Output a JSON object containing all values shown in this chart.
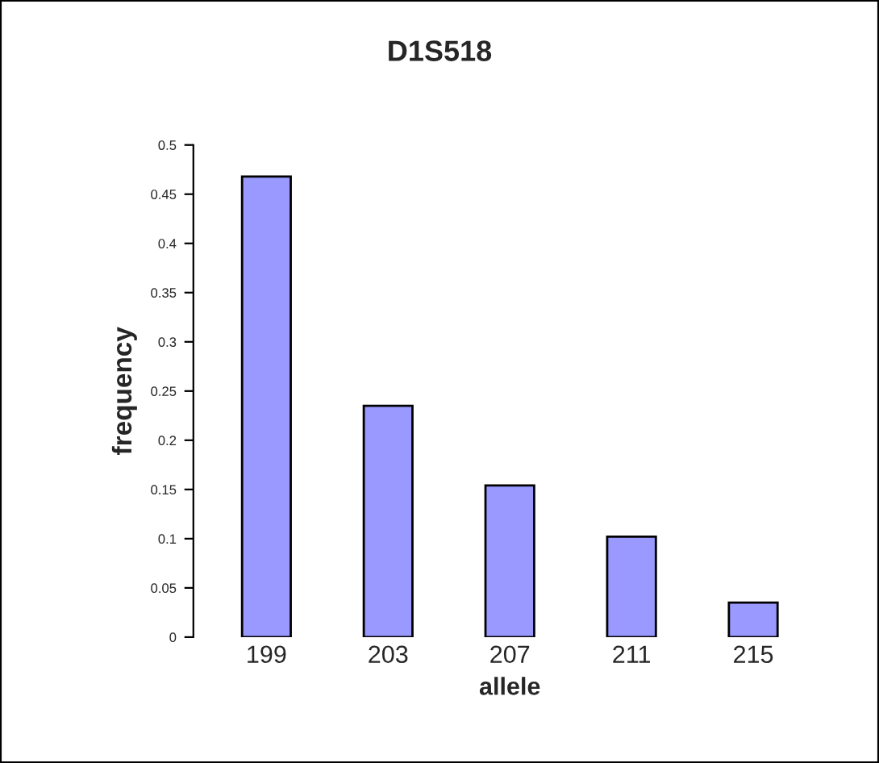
{
  "chart_data": {
    "type": "bar",
    "title": "D1S518",
    "xlabel": "allele",
    "ylabel": "frequency",
    "categories": [
      "199",
      "203",
      "207",
      "211",
      "215"
    ],
    "values": [
      0.468,
      0.235,
      0.154,
      0.102,
      0.035
    ],
    "color": "#9999ff",
    "ylim": [
      0,
      0.5
    ],
    "yticks": [
      0,
      0.05,
      0.1,
      0.15,
      0.2,
      0.25,
      0.3,
      0.35,
      0.4,
      0.45,
      0.5
    ],
    "grid": false,
    "legend": false
  }
}
